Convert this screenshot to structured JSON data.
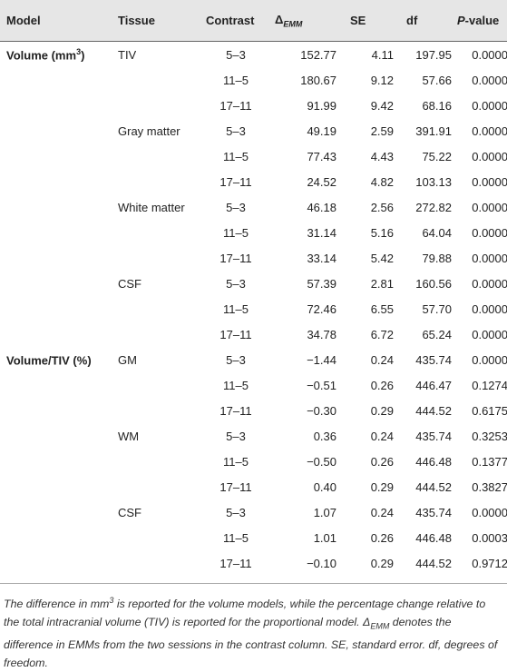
{
  "headers": {
    "model": "Model",
    "tissue": "Tissue",
    "contrast": "Contrast",
    "delta": "Δ",
    "delta_sub": "EMM",
    "se": "SE",
    "df": "df",
    "p_prefix": "P",
    "p_suffix": "-value"
  },
  "rows": [
    {
      "model": "Volume (mm",
      "model_sup": "3",
      "model_end": ")",
      "tissue": "TIV",
      "contrast": "5–3",
      "emm": "152.77",
      "se": "4.11",
      "df": "197.95",
      "p": "0.0000"
    },
    {
      "model": "",
      "model_sup": "",
      "model_end": "",
      "tissue": "",
      "contrast": "11–5",
      "emm": "180.67",
      "se": "9.12",
      "df": "57.66",
      "p": "0.0000"
    },
    {
      "model": "",
      "model_sup": "",
      "model_end": "",
      "tissue": "",
      "contrast": "17–11",
      "emm": "91.99",
      "se": "9.42",
      "df": "68.16",
      "p": "0.0000"
    },
    {
      "model": "",
      "model_sup": "",
      "model_end": "",
      "tissue": "Gray matter",
      "contrast": "5–3",
      "emm": "49.19",
      "se": "2.59",
      "df": "391.91",
      "p": "0.0000"
    },
    {
      "model": "",
      "model_sup": "",
      "model_end": "",
      "tissue": "",
      "contrast": "11–5",
      "emm": "77.43",
      "se": "4.43",
      "df": "75.22",
      "p": "0.0000"
    },
    {
      "model": "",
      "model_sup": "",
      "model_end": "",
      "tissue": "",
      "contrast": "17–11",
      "emm": "24.52",
      "se": "4.82",
      "df": "103.13",
      "p": "0.0000"
    },
    {
      "model": "",
      "model_sup": "",
      "model_end": "",
      "tissue": "White matter",
      "contrast": "5–3",
      "emm": "46.18",
      "se": "2.56",
      "df": "272.82",
      "p": "0.0000"
    },
    {
      "model": "",
      "model_sup": "",
      "model_end": "",
      "tissue": "",
      "contrast": "11–5",
      "emm": "31.14",
      "se": "5.16",
      "df": "64.04",
      "p": "0.0000"
    },
    {
      "model": "",
      "model_sup": "",
      "model_end": "",
      "tissue": "",
      "contrast": "17–11",
      "emm": "33.14",
      "se": "5.42",
      "df": "79.88",
      "p": "0.0000"
    },
    {
      "model": "",
      "model_sup": "",
      "model_end": "",
      "tissue": "CSF",
      "contrast": "5–3",
      "emm": "57.39",
      "se": "2.81",
      "df": "160.56",
      "p": "0.0000"
    },
    {
      "model": "",
      "model_sup": "",
      "model_end": "",
      "tissue": "",
      "contrast": "11–5",
      "emm": "72.46",
      "se": "6.55",
      "df": "57.70",
      "p": "0.0000"
    },
    {
      "model": "",
      "model_sup": "",
      "model_end": "",
      "tissue": "",
      "contrast": "17–11",
      "emm": "34.78",
      "se": "6.72",
      "df": "65.24",
      "p": "0.0000"
    },
    {
      "model": "Volume/TIV (%)",
      "model_sup": "",
      "model_end": "",
      "tissue": "GM",
      "contrast": "5–3",
      "emm": "−1.44",
      "se": "0.24",
      "df": "435.74",
      "p": "0.0000"
    },
    {
      "model": "",
      "model_sup": "",
      "model_end": "",
      "tissue": "",
      "contrast": "11–5",
      "emm": "−0.51",
      "se": "0.26",
      "df": "446.47",
      "p": "0.1274"
    },
    {
      "model": "",
      "model_sup": "",
      "model_end": "",
      "tissue": "",
      "contrast": "17–11",
      "emm": "−0.30",
      "se": "0.29",
      "df": "444.52",
      "p": "0.6175"
    },
    {
      "model": "",
      "model_sup": "",
      "model_end": "",
      "tissue": "WM",
      "contrast": "5–3",
      "emm": "0.36",
      "se": "0.24",
      "df": "435.74",
      "p": "0.3253"
    },
    {
      "model": "",
      "model_sup": "",
      "model_end": "",
      "tissue": "",
      "contrast": "11–5",
      "emm": "−0.50",
      "se": "0.26",
      "df": "446.48",
      "p": "0.1377"
    },
    {
      "model": "",
      "model_sup": "",
      "model_end": "",
      "tissue": "",
      "contrast": "17–11",
      "emm": "0.40",
      "se": "0.29",
      "df": "444.52",
      "p": "0.3827"
    },
    {
      "model": "",
      "model_sup": "",
      "model_end": "",
      "tissue": "CSF",
      "contrast": "5–3",
      "emm": "1.07",
      "se": "0.24",
      "df": "435.74",
      "p": "0.0000"
    },
    {
      "model": "",
      "model_sup": "",
      "model_end": "",
      "tissue": "",
      "contrast": "11–5",
      "emm": "1.01",
      "se": "0.26",
      "df": "446.48",
      "p": "0.0003"
    },
    {
      "model": "",
      "model_sup": "",
      "model_end": "",
      "tissue": "",
      "contrast": "17–11",
      "emm": "−0.10",
      "se": "0.29",
      "df": "444.52",
      "p": "0.9712"
    }
  ],
  "footnote": {
    "part1": "The difference in mm",
    "sup": "3",
    "part2": " is reported for the volume models, while the percentage change relative to the total intracranial volume (TIV) is reported for the proportional model. Δ",
    "sub": "EMM",
    "part3": " denotes the difference in EMMs from the two sessions in the contrast column. SE, standard error. df, degrees of freedom."
  }
}
